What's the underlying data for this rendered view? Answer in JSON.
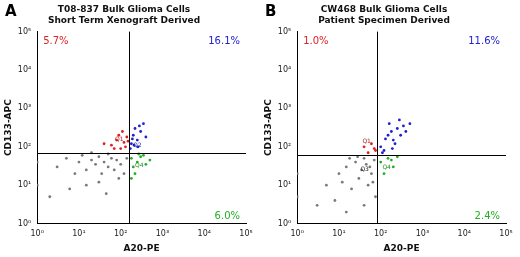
{
  "chart_data": [
    {
      "type": "scatter",
      "panel": "A",
      "title": [
        "T08-837 Bulk Glioma Cells",
        "Short Term Xenograft Derived"
      ],
      "x_label": "A20-PE",
      "y_label": "CD133-APC",
      "log": true,
      "grid": false,
      "xlim": [
        1,
        100000
      ],
      "ylim": [
        1,
        100000
      ],
      "xticks": [
        {
          "value": 1,
          "label": "10⁰"
        },
        {
          "value": 10,
          "label": "10¹"
        },
        {
          "value": 100,
          "label": "10²"
        },
        {
          "value": 1000,
          "label": "10³"
        },
        {
          "value": 10000,
          "label": "10⁴"
        },
        {
          "value": 100000,
          "label": "10⁵"
        }
      ],
      "yticks": [
        {
          "value": 1,
          "label": "10⁰"
        },
        {
          "value": 10,
          "label": "10¹"
        },
        {
          "value": 100,
          "label": "10²"
        },
        {
          "value": 1000,
          "label": "10³"
        },
        {
          "value": 10000,
          "label": "10⁴"
        },
        {
          "value": 100000,
          "label": "10⁵"
        }
      ],
      "gates": {
        "x": 160,
        "y": 70
      },
      "quadrant_labels": [
        {
          "label": "Q1",
          "color": "#b01818"
        },
        {
          "label": "Q2",
          "color": "#1818a0"
        },
        {
          "label": "Q4",
          "color": "#189018"
        }
      ],
      "quadrant_percentages": [
        {
          "quadrant": "Q1",
          "value": 5.7,
          "label": "5.7%",
          "color": "#e02020"
        },
        {
          "quadrant": "Q2",
          "value": 16.1,
          "label": "16.1%",
          "color": "#2020d0"
        },
        {
          "quadrant": "Q4",
          "value": 6.0,
          "label": "6.0%",
          "color": "#20b020"
        }
      ],
      "series": [
        {
          "name": "Q3",
          "color": "#7a7a7a",
          "values": [
            [
              3,
              30
            ],
            [
              5,
              50
            ],
            [
              8,
              20
            ],
            [
              10,
              40
            ],
            [
              12,
              60
            ],
            [
              15,
              25
            ],
            [
              20,
              45
            ],
            [
              25,
              35
            ],
            [
              30,
              55
            ],
            [
              35,
              20
            ],
            [
              40,
              40
            ],
            [
              50,
              30
            ],
            [
              60,
              50
            ],
            [
              70,
              25
            ],
            [
              80,
              45
            ],
            [
              100,
              35
            ],
            [
              120,
              20
            ],
            [
              1,
              10
            ],
            [
              1,
              40
            ],
            [
              2,
              5
            ],
            [
              6,
              8
            ],
            [
              15,
              10
            ],
            [
              30,
              12
            ],
            [
              45,
              6
            ],
            [
              90,
              15
            ],
            [
              140,
              50
            ],
            [
              20,
              70
            ],
            [
              50,
              65
            ]
          ]
        },
        {
          "name": "Q1",
          "color": "#e02020",
          "values": [
            [
              60,
              110
            ],
            [
              80,
              150
            ],
            [
              100,
              90
            ],
            [
              120,
              130
            ],
            [
              90,
              200
            ],
            [
              140,
              180
            ],
            [
              70,
              90
            ],
            [
              110,
              250
            ],
            [
              40,
              120
            ],
            [
              130,
              100
            ],
            [
              150,
              140
            ]
          ]
        },
        {
          "name": "Q2",
          "color": "#2020d0",
          "values": [
            [
              180,
              120
            ],
            [
              200,
              200
            ],
            [
              250,
              150
            ],
            [
              220,
              300
            ],
            [
              300,
              250
            ],
            [
              170,
              90
            ],
            [
              260,
              100
            ],
            [
              350,
              400
            ],
            [
              400,
              180
            ],
            [
              190,
              160
            ],
            [
              280,
              350
            ],
            [
              210,
              110
            ]
          ]
        },
        {
          "name": "Q4",
          "color": "#20b020",
          "values": [
            [
              180,
              50
            ],
            [
              200,
              30
            ],
            [
              250,
              40
            ],
            [
              300,
              55
            ],
            [
              220,
              20
            ],
            [
              400,
              35
            ],
            [
              180,
              15
            ],
            [
              350,
              60
            ],
            [
              500,
              45
            ],
            [
              270,
              65
            ]
          ]
        }
      ]
    },
    {
      "type": "scatter",
      "panel": "B",
      "title": [
        "CW468 Bulk Glioma Cells",
        "Patient Specimen Derived"
      ],
      "x_label": "A20-PE",
      "y_label": "CD133-APC",
      "log": true,
      "grid": false,
      "xlim": [
        1,
        100000
      ],
      "ylim": [
        1,
        100000
      ],
      "xticks": [
        {
          "value": 1,
          "label": "10⁰"
        },
        {
          "value": 10,
          "label": "10¹"
        },
        {
          "value": 100,
          "label": "10²"
        },
        {
          "value": 1000,
          "label": "10³"
        },
        {
          "value": 10000,
          "label": "10⁴"
        },
        {
          "value": 100000,
          "label": "10⁵"
        }
      ],
      "yticks": [
        {
          "value": 1,
          "label": "10⁰"
        },
        {
          "value": 10,
          "label": "10¹"
        },
        {
          "value": 100,
          "label": "10²"
        },
        {
          "value": 1000,
          "label": "10³"
        },
        {
          "value": 10000,
          "label": "10⁴"
        },
        {
          "value": 100000,
          "label": "10⁵"
        }
      ],
      "gates": {
        "x": 80,
        "y": 60
      },
      "quadrant_labels": [
        {
          "label": "Q1",
          "color": "#b01818"
        },
        {
          "label": "Q3",
          "color": "#222222"
        },
        {
          "label": "Q4",
          "color": "#189018"
        }
      ],
      "quadrant_percentages": [
        {
          "quadrant": "Q1",
          "value": 1.0,
          "label": "1.0%",
          "color": "#e02020"
        },
        {
          "quadrant": "Q2",
          "value": 11.6,
          "label": "11.6%",
          "color": "#2020d0"
        },
        {
          "quadrant": "Q4",
          "value": 2.4,
          "label": "2.4%",
          "color": "#20b020"
        }
      ],
      "series": [
        {
          "name": "Q3",
          "color": "#7a7a7a",
          "values": [
            [
              5,
              10
            ],
            [
              10,
              20
            ],
            [
              15,
              30
            ],
            [
              20,
              8
            ],
            [
              25,
              40
            ],
            [
              30,
              15
            ],
            [
              35,
              25
            ],
            [
              40,
              50
            ],
            [
              50,
              10
            ],
            [
              55,
              30
            ],
            [
              60,
              20
            ],
            [
              70,
              45
            ],
            [
              75,
              5
            ],
            [
              3,
              3
            ],
            [
              8,
              4
            ],
            [
              12,
              12
            ],
            [
              18,
              50
            ],
            [
              45,
              35
            ],
            [
              65,
              12
            ],
            [
              28,
              55
            ],
            [
              1,
              5
            ],
            [
              1,
              20
            ],
            [
              40,
              3
            ],
            [
              15,
              2
            ]
          ]
        },
        {
          "name": "Q1",
          "color": "#e02020",
          "values": [
            [
              50,
              70
            ],
            [
              70,
              90
            ],
            [
              60,
              120
            ],
            [
              75,
              80
            ],
            [
              40,
              100
            ]
          ]
        },
        {
          "name": "Q2",
          "color": "#2020d0",
          "values": [
            [
              100,
              100
            ],
            [
              150,
              200
            ],
            [
              200,
              150
            ],
            [
              250,
              300
            ],
            [
              120,
              80
            ],
            [
              180,
              250
            ],
            [
              300,
              200
            ],
            [
              220,
              120
            ],
            [
              160,
              400
            ],
            [
              350,
              350
            ],
            [
              130,
              160
            ],
            [
              400,
              250
            ],
            [
              280,
              500
            ],
            [
              110,
              70
            ],
            [
              190,
              90
            ],
            [
              500,
              400
            ]
          ]
        },
        {
          "name": "Q4",
          "color": "#20b020",
          "values": [
            [
              100,
              40
            ],
            [
              150,
              50
            ],
            [
              200,
              30
            ],
            [
              120,
              20
            ],
            [
              250,
              55
            ],
            [
              180,
              45
            ]
          ]
        }
      ]
    }
  ]
}
